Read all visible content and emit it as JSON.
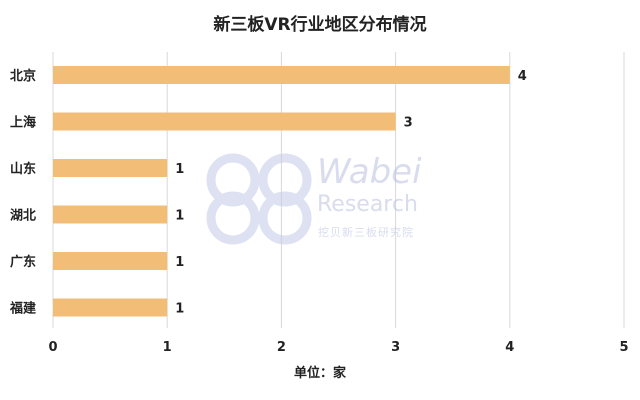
{
  "chart_data": {
    "type": "bar",
    "orientation": "horizontal",
    "title": "新三板VR行业地区分布情况",
    "categories": [
      "北京",
      "上海",
      "山东",
      "湖北",
      "广东",
      "福建"
    ],
    "values": [
      4,
      3,
      1,
      1,
      1,
      1
    ],
    "value_labels": [
      "4",
      "3",
      "1",
      "1",
      "1",
      "1"
    ],
    "xlim": [
      0,
      5
    ],
    "xticks": [
      "0",
      "1",
      "2",
      "3",
      "4",
      "5"
    ],
    "xlabel": "单位：家",
    "grid": "vertical",
    "bar_color": "#f2bd76"
  },
  "watermark": {
    "word": "Wabei",
    "sub": "Research",
    "cn": "挖贝新三板研究院"
  }
}
